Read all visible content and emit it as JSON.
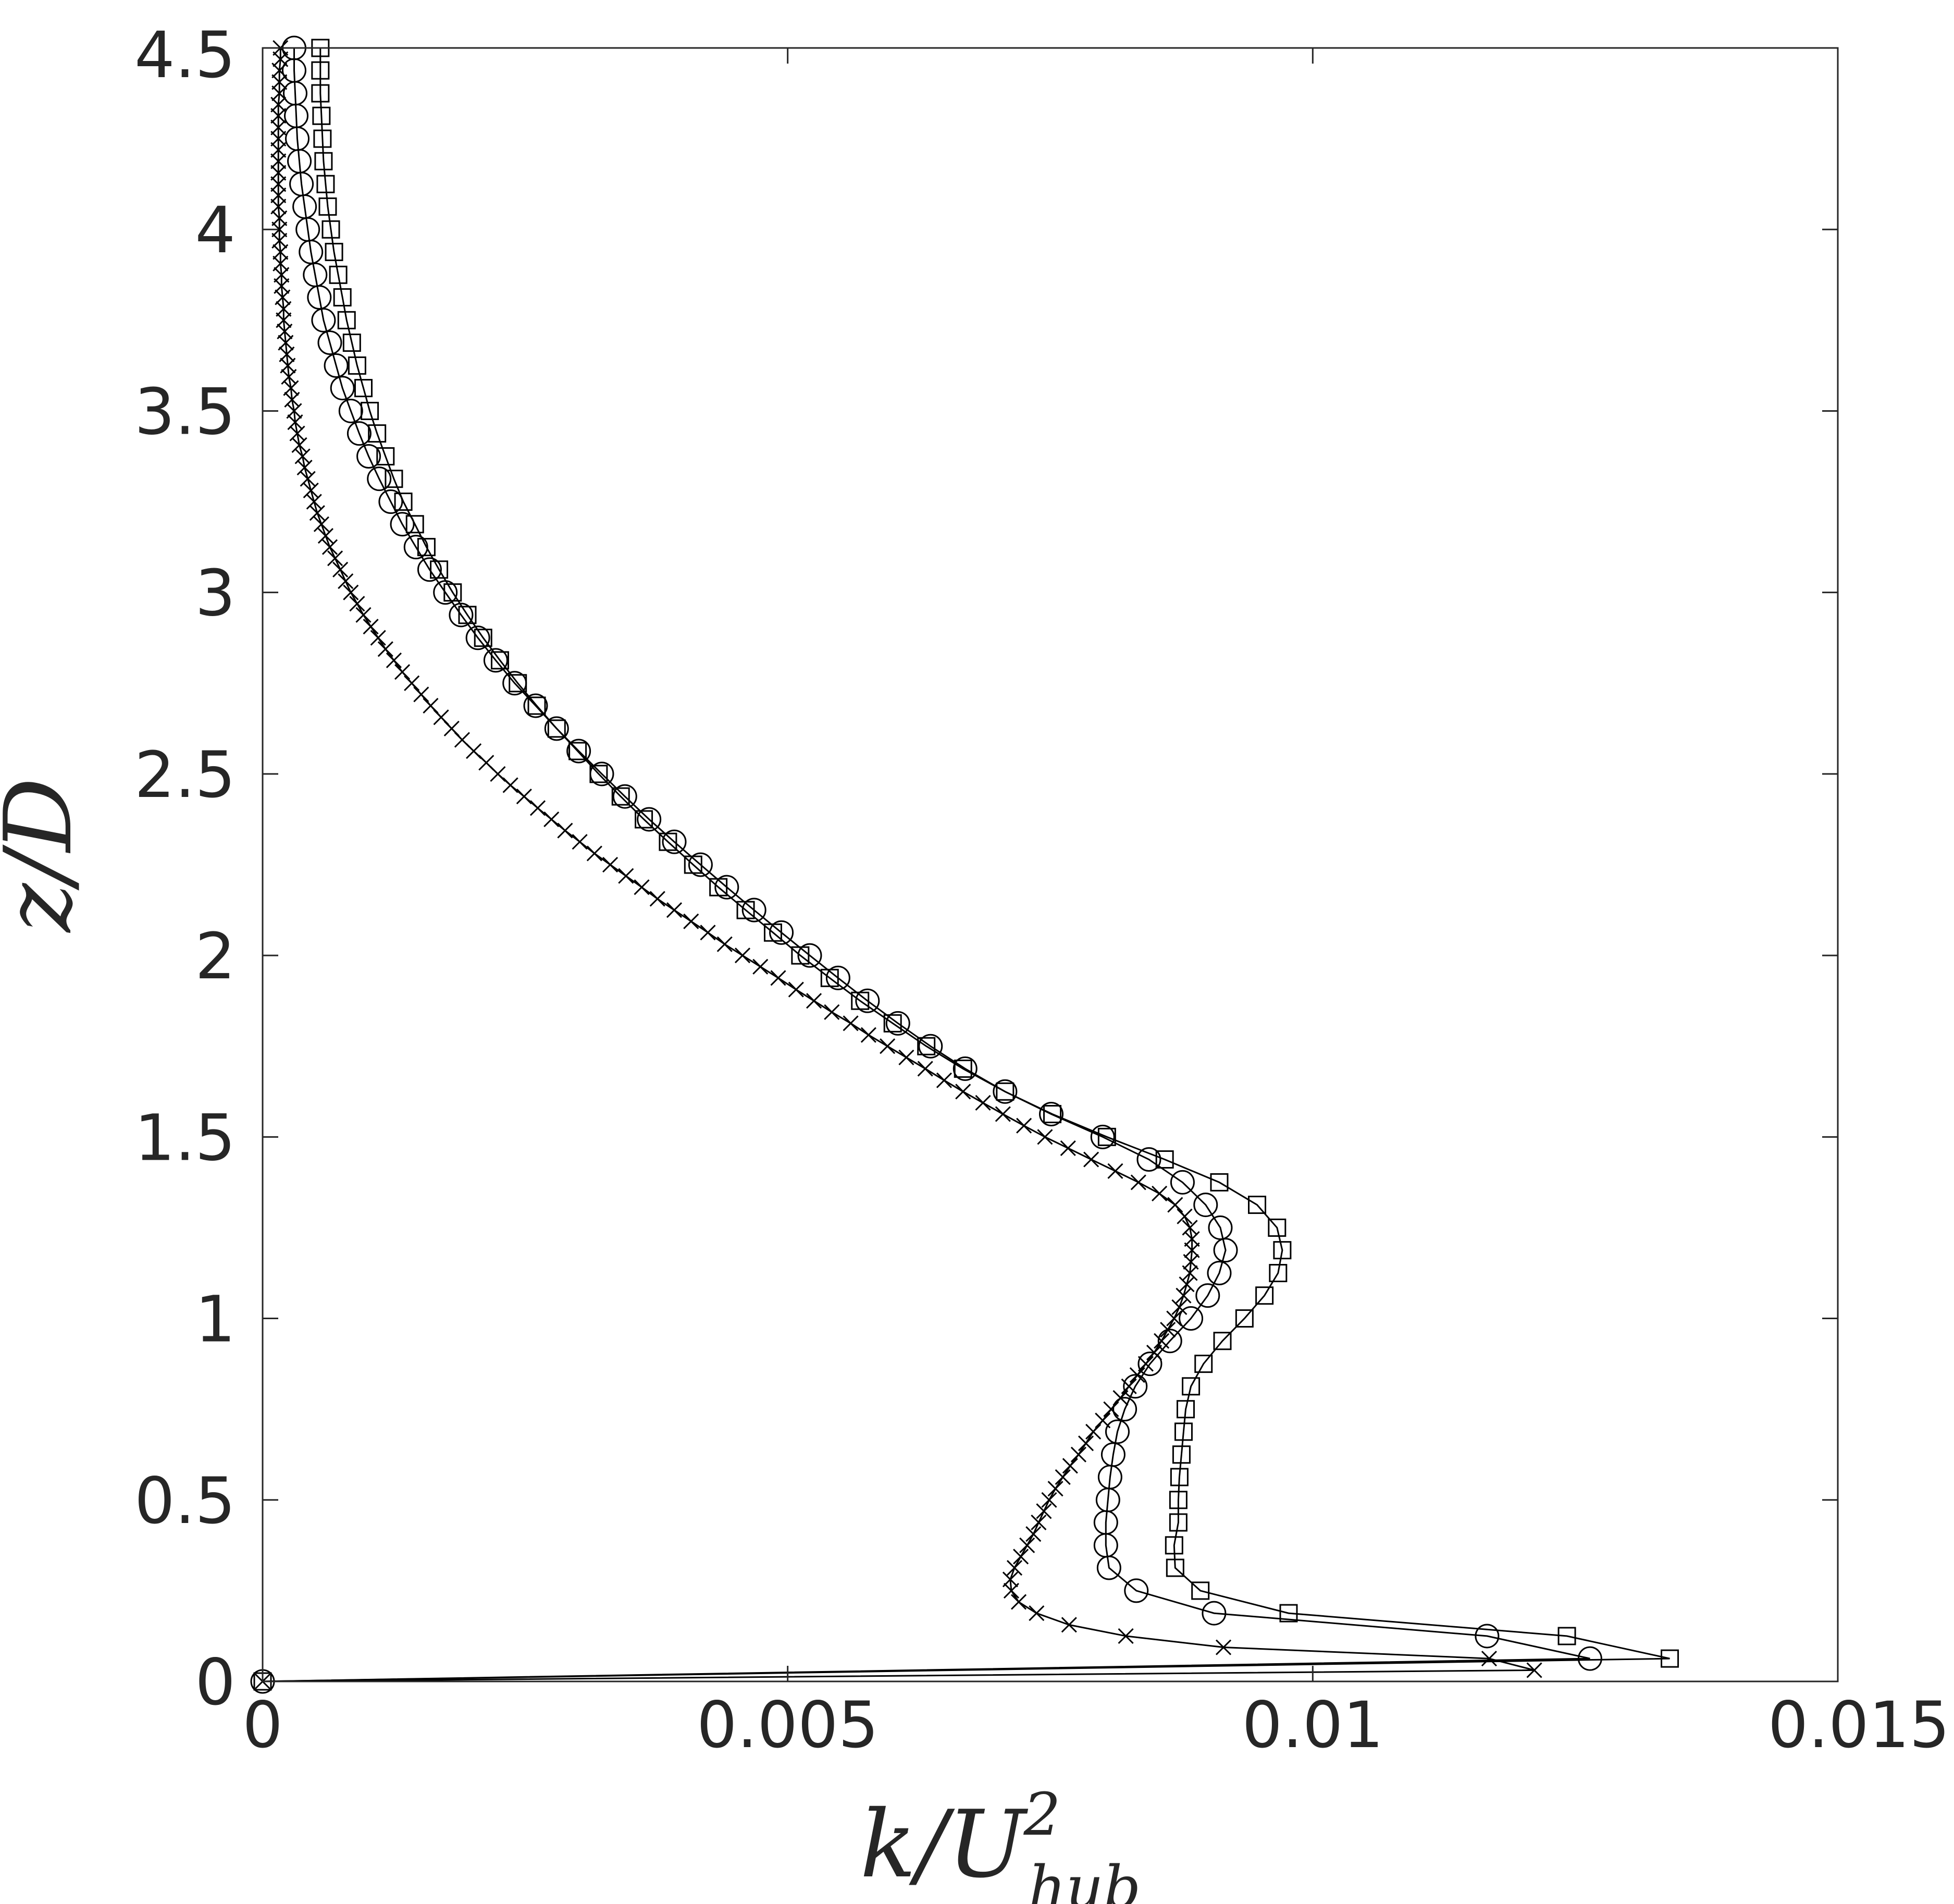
{
  "chart_data": {
    "type": "line",
    "title": "",
    "xlabel": "k/U_hub^2",
    "ylabel": "z/D",
    "xlim": [
      0,
      0.015
    ],
    "ylim": [
      0,
      4.5
    ],
    "xticks": [
      0,
      0.005,
      0.01,
      0.015
    ],
    "xtick_labels": [
      "0",
      "0.005",
      "0.01",
      "0.015"
    ],
    "yticks": [
      0,
      0.5,
      1,
      1.5,
      2,
      2.5,
      3,
      3.5,
      4,
      4.5
    ],
    "ytick_labels": [
      "0",
      "0.5",
      "1",
      "1.5",
      "2",
      "2.5",
      "3",
      "3.5",
      "4",
      "4.5"
    ],
    "grid": false,
    "legend": false,
    "color": "#000000",
    "series": [
      {
        "marker": "square",
        "points": [
          [
            0.0,
            0.0
          ],
          [
            0.0134,
            0.063
          ],
          [
            0.01242,
            0.125
          ],
          [
            0.00977,
            0.188
          ],
          [
            0.00893,
            0.25
          ],
          [
            0.00869,
            0.313
          ],
          [
            0.00868,
            0.375
          ],
          [
            0.00872,
            0.438
          ],
          [
            0.00872,
            0.5
          ],
          [
            0.00873,
            0.563
          ],
          [
            0.00875,
            0.625
          ],
          [
            0.00877,
            0.688
          ],
          [
            0.00879,
            0.75
          ],
          [
            0.00884,
            0.813
          ],
          [
            0.00896,
            0.875
          ],
          [
            0.00914,
            0.938
          ],
          [
            0.00935,
            1.0
          ],
          [
            0.00954,
            1.063
          ],
          [
            0.00967,
            1.125
          ],
          [
            0.00971,
            1.188
          ],
          [
            0.00966,
            1.25
          ],
          [
            0.00947,
            1.313
          ],
          [
            0.00911,
            1.375
          ],
          [
            0.00859,
            1.438
          ],
          [
            0.00804,
            1.5
          ],
          [
            0.00752,
            1.563
          ],
          [
            0.00707,
            1.625
          ],
          [
            0.00667,
            1.688
          ],
          [
            0.00632,
            1.75
          ],
          [
            0.006,
            1.813
          ],
          [
            0.00569,
            1.875
          ],
          [
            0.0054,
            1.938
          ],
          [
            0.00512,
            2.0
          ],
          [
            0.00486,
            2.063
          ],
          [
            0.0046,
            2.125
          ],
          [
            0.00434,
            2.188
          ],
          [
            0.0041,
            2.25
          ],
          [
            0.00386,
            2.313
          ],
          [
            0.00363,
            2.375
          ],
          [
            0.00341,
            2.438
          ],
          [
            0.0032,
            2.5
          ],
          [
            0.003,
            2.563
          ],
          [
            0.0028,
            2.625
          ],
          [
            0.00261,
            2.688
          ],
          [
            0.00243,
            2.75
          ],
          [
            0.00226,
            2.813
          ],
          [
            0.0021,
            2.875
          ],
          [
            0.00195,
            2.938
          ],
          [
            0.00181,
            3.0
          ],
          [
            0.00168,
            3.063
          ],
          [
            0.00156,
            3.125
          ],
          [
            0.00145,
            3.188
          ],
          [
            0.00134,
            3.25
          ],
          [
            0.00125,
            3.313
          ],
          [
            0.00117,
            3.375
          ],
          [
            0.00109,
            3.438
          ],
          [
            0.00102,
            3.5
          ],
          [
            0.00096,
            3.563
          ],
          [
            0.0009,
            3.625
          ],
          [
            0.00085,
            3.688
          ],
          [
            0.0008,
            3.75
          ],
          [
            0.00076,
            3.813
          ],
          [
            0.00072,
            3.875
          ],
          [
            0.00068,
            3.938
          ],
          [
            0.00065,
            4.0
          ],
          [
            0.00062,
            4.063
          ],
          [
            0.0006,
            4.125
          ],
          [
            0.00058,
            4.188
          ],
          [
            0.00057,
            4.25
          ],
          [
            0.00056,
            4.313
          ],
          [
            0.00055,
            4.375
          ],
          [
            0.00055,
            4.438
          ],
          [
            0.00055,
            4.5
          ]
        ]
      },
      {
        "marker": "circle",
        "points": [
          [
            0.0,
            0.0
          ],
          [
            0.01264,
            0.063
          ],
          [
            0.01166,
            0.125
          ],
          [
            0.00906,
            0.188
          ],
          [
            0.00832,
            0.25
          ],
          [
            0.00806,
            0.313
          ],
          [
            0.00803,
            0.375
          ],
          [
            0.00803,
            0.438
          ],
          [
            0.00805,
            0.5
          ],
          [
            0.00807,
            0.563
          ],
          [
            0.0081,
            0.625
          ],
          [
            0.00814,
            0.688
          ],
          [
            0.00821,
            0.75
          ],
          [
            0.00831,
            0.813
          ],
          [
            0.00845,
            0.875
          ],
          [
            0.00864,
            0.938
          ],
          [
            0.00884,
            1.0
          ],
          [
            0.009,
            1.063
          ],
          [
            0.00911,
            1.125
          ],
          [
            0.00917,
            1.188
          ],
          [
            0.00912,
            1.25
          ],
          [
            0.00898,
            1.313
          ],
          [
            0.00876,
            1.375
          ],
          [
            0.00844,
            1.438
          ],
          [
            0.008,
            1.5
          ],
          [
            0.00751,
            1.563
          ],
          [
            0.00707,
            1.625
          ],
          [
            0.00669,
            1.688
          ],
          [
            0.00636,
            1.75
          ],
          [
            0.00605,
            1.813
          ],
          [
            0.00576,
            1.875
          ],
          [
            0.00548,
            1.938
          ],
          [
            0.00521,
            2.0
          ],
          [
            0.00494,
            2.063
          ],
          [
            0.00468,
            2.125
          ],
          [
            0.00442,
            2.188
          ],
          [
            0.00417,
            2.25
          ],
          [
            0.00392,
            2.313
          ],
          [
            0.00368,
            2.375
          ],
          [
            0.00345,
            2.438
          ],
          [
            0.00323,
            2.5
          ],
          [
            0.00301,
            2.563
          ],
          [
            0.0028,
            2.625
          ],
          [
            0.0026,
            2.688
          ],
          [
            0.0024,
            2.75
          ],
          [
            0.00222,
            2.813
          ],
          [
            0.00205,
            2.875
          ],
          [
            0.00189,
            2.938
          ],
          [
            0.00174,
            3.0
          ],
          [
            0.00159,
            3.063
          ],
          [
            0.00146,
            3.125
          ],
          [
            0.00133,
            3.188
          ],
          [
            0.00122,
            3.25
          ],
          [
            0.00111,
            3.313
          ],
          [
            0.00101,
            3.375
          ],
          [
            0.00092,
            3.438
          ],
          [
            0.00084,
            3.5
          ],
          [
            0.00076,
            3.563
          ],
          [
            0.0007,
            3.625
          ],
          [
            0.00064,
            3.688
          ],
          [
            0.00058,
            3.75
          ],
          [
            0.00054,
            3.813
          ],
          [
            0.0005,
            3.875
          ],
          [
            0.00046,
            3.938
          ],
          [
            0.00043,
            4.0
          ],
          [
            0.0004,
            4.063
          ],
          [
            0.00037,
            4.125
          ],
          [
            0.00035,
            4.188
          ],
          [
            0.00033,
            4.25
          ],
          [
            0.00032,
            4.313
          ],
          [
            0.00031,
            4.375
          ],
          [
            0.0003,
            4.438
          ],
          [
            0.0003,
            4.5
          ]
        ]
      },
      {
        "marker": "cross",
        "points": [
          [
            0.0,
            0.0
          ],
          [
            0.01211,
            0.031
          ],
          [
            0.01168,
            0.063
          ],
          [
            0.00915,
            0.094
          ],
          [
            0.00822,
            0.125
          ],
          [
            0.00768,
            0.156
          ],
          [
            0.00737,
            0.188
          ],
          [
            0.0072,
            0.219
          ],
          [
            0.00713,
            0.25
          ],
          [
            0.00712,
            0.281
          ],
          [
            0.00716,
            0.313
          ],
          [
            0.00722,
            0.344
          ],
          [
            0.00728,
            0.375
          ],
          [
            0.00734,
            0.406
          ],
          [
            0.00739,
            0.438
          ],
          [
            0.00744,
            0.469
          ],
          [
            0.00749,
            0.5
          ],
          [
            0.00755,
            0.531
          ],
          [
            0.00762,
            0.563
          ],
          [
            0.00769,
            0.594
          ],
          [
            0.00777,
            0.625
          ],
          [
            0.00784,
            0.656
          ],
          [
            0.00791,
            0.688
          ],
          [
            0.008,
            0.719
          ],
          [
            0.00808,
            0.75
          ],
          [
            0.00817,
            0.781
          ],
          [
            0.00825,
            0.813
          ],
          [
            0.00833,
            0.844
          ],
          [
            0.00841,
            0.875
          ],
          [
            0.00849,
            0.906
          ],
          [
            0.00856,
            0.938
          ],
          [
            0.00862,
            0.969
          ],
          [
            0.00868,
            1.0
          ],
          [
            0.00873,
            1.031
          ],
          [
            0.00877,
            1.063
          ],
          [
            0.0088,
            1.094
          ],
          [
            0.00883,
            1.125
          ],
          [
            0.00884,
            1.156
          ],
          [
            0.00885,
            1.188
          ],
          [
            0.00885,
            1.219
          ],
          [
            0.00883,
            1.25
          ],
          [
            0.00878,
            1.281
          ],
          [
            0.00869,
            1.313
          ],
          [
            0.00854,
            1.344
          ],
          [
            0.00834,
            1.375
          ],
          [
            0.00812,
            1.406
          ],
          [
            0.00789,
            1.438
          ],
          [
            0.00767,
            1.469
          ],
          [
            0.00745,
            1.5
          ],
          [
            0.00725,
            1.531
          ],
          [
            0.00705,
            1.563
          ],
          [
            0.00686,
            1.594
          ],
          [
            0.00667,
            1.625
          ],
          [
            0.00649,
            1.656
          ],
          [
            0.00631,
            1.688
          ],
          [
            0.00613,
            1.719
          ],
          [
            0.00595,
            1.75
          ],
          [
            0.00577,
            1.781
          ],
          [
            0.0056,
            1.813
          ],
          [
            0.00542,
            1.844
          ],
          [
            0.00525,
            1.875
          ],
          [
            0.00508,
            1.906
          ],
          [
            0.00491,
            1.938
          ],
          [
            0.00474,
            1.969
          ],
          [
            0.00457,
            2.0
          ],
          [
            0.0044,
            2.031
          ],
          [
            0.00424,
            2.063
          ],
          [
            0.00408,
            2.094
          ],
          [
            0.00392,
            2.125
          ],
          [
            0.00376,
            2.156
          ],
          [
            0.00361,
            2.188
          ],
          [
            0.00346,
            2.219
          ],
          [
            0.00331,
            2.25
          ],
          [
            0.00316,
            2.281
          ],
          [
            0.00302,
            2.313
          ],
          [
            0.00288,
            2.344
          ],
          [
            0.00275,
            2.375
          ],
          [
            0.00262,
            2.406
          ],
          [
            0.00249,
            2.438
          ],
          [
            0.00236,
            2.469
          ],
          [
            0.00224,
            2.5
          ],
          [
            0.00213,
            2.531
          ],
          [
            0.00201,
            2.563
          ],
          [
            0.0019,
            2.594
          ],
          [
            0.0018,
            2.625
          ],
          [
            0.0017,
            2.656
          ],
          [
            0.0016,
            2.688
          ],
          [
            0.00151,
            2.719
          ],
          [
            0.00142,
            2.75
          ],
          [
            0.00133,
            2.781
          ],
          [
            0.00125,
            2.813
          ],
          [
            0.00117,
            2.844
          ],
          [
            0.0011,
            2.875
          ],
          [
            0.00103,
            2.906
          ],
          [
            0.00096,
            2.938
          ],
          [
            0.0009,
            2.969
          ],
          [
            0.00084,
            3.0
          ],
          [
            0.00079,
            3.031
          ],
          [
            0.00074,
            3.063
          ],
          [
            0.00069,
            3.094
          ],
          [
            0.00064,
            3.125
          ],
          [
            0.0006,
            3.156
          ],
          [
            0.00056,
            3.188
          ],
          [
            0.00052,
            3.219
          ],
          [
            0.00049,
            3.25
          ],
          [
            0.00046,
            3.281
          ],
          [
            0.00043,
            3.313
          ],
          [
            0.0004,
            3.344
          ],
          [
            0.00038,
            3.375
          ],
          [
            0.00035,
            3.406
          ],
          [
            0.00033,
            3.438
          ],
          [
            0.00031,
            3.469
          ],
          [
            0.0003,
            3.5
          ],
          [
            0.00028,
            3.531
          ],
          [
            0.00027,
            3.563
          ],
          [
            0.00025,
            3.594
          ],
          [
            0.00024,
            3.625
          ],
          [
            0.00023,
            3.656
          ],
          [
            0.00022,
            3.688
          ],
          [
            0.00021,
            3.719
          ],
          [
            0.0002,
            3.75
          ],
          [
            0.0002,
            3.781
          ],
          [
            0.00019,
            3.813
          ],
          [
            0.00018,
            3.844
          ],
          [
            0.00018,
            3.875
          ],
          [
            0.00017,
            3.906
          ],
          [
            0.00017,
            3.938
          ],
          [
            0.00016,
            3.969
          ],
          [
            0.00016,
            4.0
          ],
          [
            0.00016,
            4.031
          ],
          [
            0.00015,
            4.063
          ],
          [
            0.00015,
            4.094
          ],
          [
            0.00015,
            4.125
          ],
          [
            0.00015,
            4.156
          ],
          [
            0.00015,
            4.188
          ],
          [
            0.00015,
            4.219
          ],
          [
            0.00015,
            4.25
          ],
          [
            0.00015,
            4.281
          ],
          [
            0.00015,
            4.313
          ],
          [
            0.00015,
            4.344
          ],
          [
            0.00016,
            4.375
          ],
          [
            0.00016,
            4.406
          ],
          [
            0.00016,
            4.438
          ],
          [
            0.00017,
            4.469
          ],
          [
            0.00017,
            4.5
          ]
        ]
      }
    ]
  }
}
